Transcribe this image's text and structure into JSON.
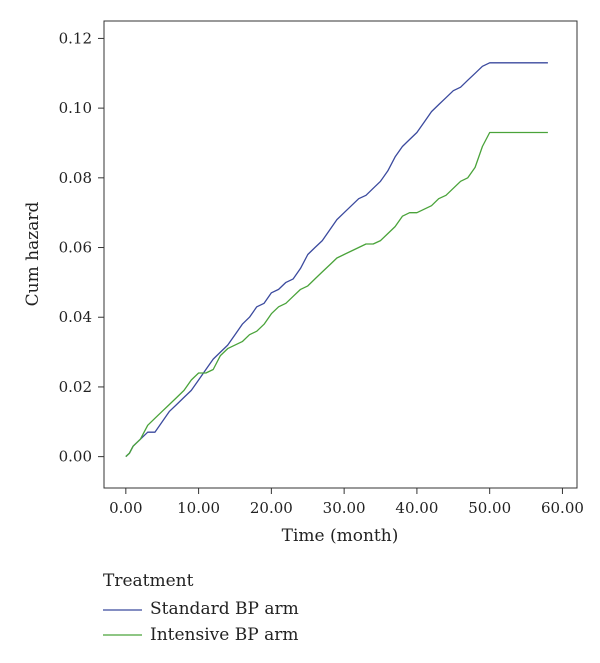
{
  "chart_data": {
    "type": "line",
    "xlabel": "Time (month)",
    "ylabel": "Cum hazard",
    "xlim": [
      -3,
      62
    ],
    "ylim": [
      -0.009,
      0.125
    ],
    "xticks": [
      0,
      10,
      20,
      30,
      40,
      50,
      60
    ],
    "xtick_labels": [
      "0.00",
      "10.00",
      "20.00",
      "30.00",
      "40.00",
      "50.00",
      "60.00"
    ],
    "yticks": [
      0,
      0.02,
      0.04,
      0.06,
      0.08,
      0.1,
      0.12
    ],
    "ytick_labels": [
      "0.00",
      "0.02",
      "0.04",
      "0.06",
      "0.08",
      "0.10",
      "0.12"
    ],
    "grid": false,
    "legend": {
      "title": "Treatment",
      "placement": "bottom-left"
    },
    "series": [
      {
        "name": "Standard BP arm",
        "color": "#3b4a9e",
        "points": [
          [
            0,
            0
          ],
          [
            0.5,
            0.001
          ],
          [
            1,
            0.003
          ],
          [
            2,
            0.005
          ],
          [
            3,
            0.007
          ],
          [
            4,
            0.007
          ],
          [
            5,
            0.01
          ],
          [
            6,
            0.013
          ],
          [
            7,
            0.015
          ],
          [
            8,
            0.017
          ],
          [
            9,
            0.019
          ],
          [
            10,
            0.022
          ],
          [
            11,
            0.025
          ],
          [
            12,
            0.028
          ],
          [
            13,
            0.03
          ],
          [
            14,
            0.032
          ],
          [
            15,
            0.035
          ],
          [
            16,
            0.038
          ],
          [
            17,
            0.04
          ],
          [
            18,
            0.043
          ],
          [
            19,
            0.044
          ],
          [
            20,
            0.047
          ],
          [
            21,
            0.048
          ],
          [
            22,
            0.05
          ],
          [
            23,
            0.051
          ],
          [
            24,
            0.054
          ],
          [
            25,
            0.058
          ],
          [
            26,
            0.06
          ],
          [
            27,
            0.062
          ],
          [
            28,
            0.065
          ],
          [
            29,
            0.068
          ],
          [
            30,
            0.07
          ],
          [
            31,
            0.072
          ],
          [
            32,
            0.074
          ],
          [
            33,
            0.075
          ],
          [
            34,
            0.077
          ],
          [
            35,
            0.079
          ],
          [
            36,
            0.082
          ],
          [
            37,
            0.086
          ],
          [
            38,
            0.089
          ],
          [
            39,
            0.091
          ],
          [
            40,
            0.093
          ],
          [
            41,
            0.096
          ],
          [
            42,
            0.099
          ],
          [
            43,
            0.101
          ],
          [
            44,
            0.103
          ],
          [
            45,
            0.105
          ],
          [
            46,
            0.106
          ],
          [
            47,
            0.108
          ],
          [
            48,
            0.11
          ],
          [
            49,
            0.112
          ],
          [
            50,
            0.113
          ],
          [
            58,
            0.113
          ]
        ]
      },
      {
        "name": "Intensive BP arm",
        "color": "#4aa33a",
        "points": [
          [
            0,
            0
          ],
          [
            0.5,
            0.001
          ],
          [
            1,
            0.003
          ],
          [
            2,
            0.005
          ],
          [
            3,
            0.009
          ],
          [
            4,
            0.011
          ],
          [
            5,
            0.013
          ],
          [
            6,
            0.015
          ],
          [
            7,
            0.017
          ],
          [
            8,
            0.019
          ],
          [
            9,
            0.022
          ],
          [
            10,
            0.024
          ],
          [
            11,
            0.024
          ],
          [
            12,
            0.025
          ],
          [
            13,
            0.029
          ],
          [
            14,
            0.031
          ],
          [
            15,
            0.032
          ],
          [
            16,
            0.033
          ],
          [
            17,
            0.035
          ],
          [
            18,
            0.036
          ],
          [
            19,
            0.038
          ],
          [
            20,
            0.041
          ],
          [
            21,
            0.043
          ],
          [
            22,
            0.044
          ],
          [
            23,
            0.046
          ],
          [
            24,
            0.048
          ],
          [
            25,
            0.049
          ],
          [
            26,
            0.051
          ],
          [
            27,
            0.053
          ],
          [
            28,
            0.055
          ],
          [
            29,
            0.057
          ],
          [
            30,
            0.058
          ],
          [
            31,
            0.059
          ],
          [
            32,
            0.06
          ],
          [
            33,
            0.061
          ],
          [
            34,
            0.061
          ],
          [
            35,
            0.062
          ],
          [
            36,
            0.064
          ],
          [
            37,
            0.066
          ],
          [
            38,
            0.069
          ],
          [
            39,
            0.07
          ],
          [
            40,
            0.07
          ],
          [
            41,
            0.071
          ],
          [
            42,
            0.072
          ],
          [
            43,
            0.074
          ],
          [
            44,
            0.075
          ],
          [
            45,
            0.077
          ],
          [
            46,
            0.079
          ],
          [
            47,
            0.08
          ],
          [
            48,
            0.083
          ],
          [
            49,
            0.089
          ],
          [
            50,
            0.093
          ],
          [
            58,
            0.093
          ]
        ]
      }
    ]
  }
}
